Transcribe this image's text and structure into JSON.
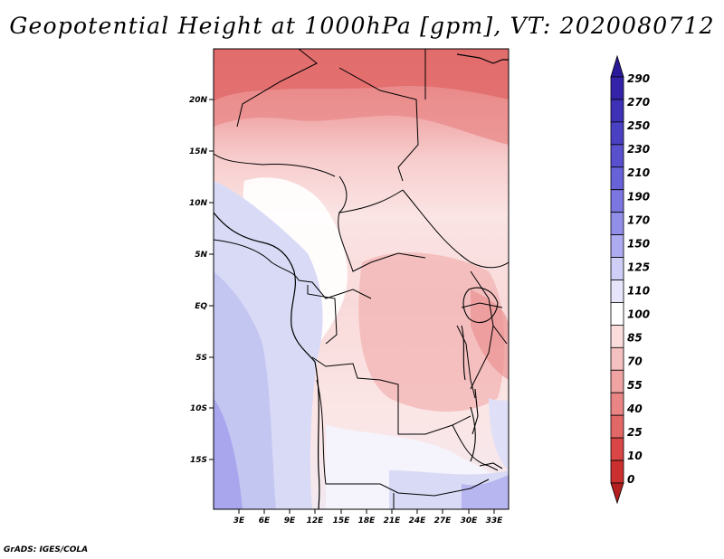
{
  "title": "Geopotential Height at 1000hPa [gpm], VT: 2020080712",
  "footer": "GrADS: IGES/COLA",
  "map": {
    "variable": "Geopotential Height",
    "level": "1000hPa",
    "units": "gpm",
    "valid_time": "2020080712",
    "lat_ticks": [
      "20N",
      "15N",
      "10N",
      "5N",
      "EQ",
      "5S",
      "10S",
      "15S"
    ],
    "lon_ticks": [
      "3E",
      "6E",
      "9E",
      "12E",
      "15E",
      "18E",
      "21E",
      "24E",
      "27E",
      "30E",
      "33E"
    ]
  },
  "colorbar": {
    "labels": [
      "290",
      "270",
      "250",
      "230",
      "210",
      "190",
      "170",
      "150",
      "125",
      "110",
      "100",
      "85",
      "70",
      "55",
      "40",
      "25",
      "10",
      "0"
    ],
    "colors": [
      "#2a1a9a",
      "#3423a8",
      "#3e31b5",
      "#4a40c2",
      "#5850cd",
      "#6862d8",
      "#7b76e0",
      "#928fe8",
      "#aeabf0",
      "#cfcef7",
      "#e6e5fb",
      "#ffffff",
      "#fbdcdc",
      "#f5c0c0",
      "#efa3a3",
      "#e98585",
      "#e26767",
      "#d94646",
      "#cc2f2f",
      "#b41f1f"
    ]
  }
}
